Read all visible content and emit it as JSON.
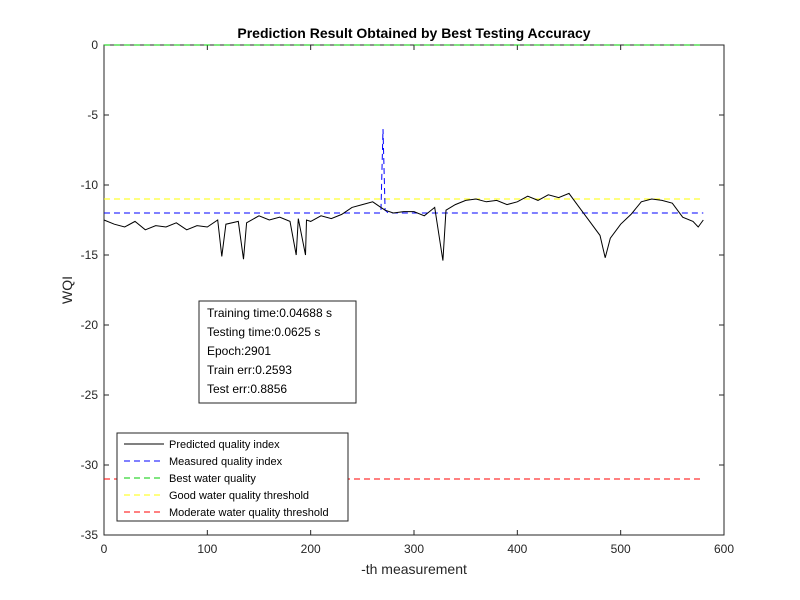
{
  "chart_data": {
    "type": "line",
    "title": "Prediction Result Obtained by Best Testing Accuracy",
    "xlabel": "-th measurement",
    "ylabel": "WQI",
    "xlim": [
      0,
      600
    ],
    "ylim": [
      -35,
      0
    ],
    "xticks": [
      "0",
      "100",
      "200",
      "300",
      "400",
      "500",
      "600"
    ],
    "yticks": [
      "0",
      "-5",
      "-10",
      "-15",
      "-20",
      "-25",
      "-30",
      "-35"
    ],
    "grid": false,
    "legend_position": "bottom-left",
    "series": [
      {
        "name": "Predicted quality index",
        "color": "#000000",
        "style": "solid",
        "x": [
          0,
          10,
          20,
          30,
          40,
          50,
          60,
          70,
          80,
          90,
          100,
          110,
          114,
          118,
          130,
          135,
          138,
          150,
          160,
          170,
          180,
          186,
          188,
          195,
          196,
          200,
          210,
          220,
          230,
          240,
          250,
          260,
          268,
          272,
          280,
          290,
          300,
          310,
          320,
          328,
          331,
          340,
          350,
          360,
          370,
          380,
          390,
          400,
          410,
          420,
          430,
          440,
          450,
          460,
          470,
          480,
          485,
          490,
          500,
          510,
          520,
          530,
          540,
          550,
          560,
          570,
          575,
          580
        ],
        "y": [
          -12.5,
          -12.8,
          -13.0,
          -12.6,
          -13.2,
          -12.9,
          -13.0,
          -12.7,
          -13.2,
          -12.9,
          -13.0,
          -12.5,
          -15.1,
          -12.8,
          -12.6,
          -15.3,
          -12.7,
          -12.2,
          -12.5,
          -12.3,
          -12.6,
          -15.0,
          -12.4,
          -15.0,
          -12.5,
          -12.6,
          -12.2,
          -12.4,
          -12.1,
          -11.6,
          -11.4,
          -11.2,
          -11.6,
          -11.8,
          -12.0,
          -11.9,
          -11.9,
          -12.2,
          -11.6,
          -15.4,
          -11.8,
          -11.4,
          -11.1,
          -11.0,
          -11.2,
          -11.1,
          -11.4,
          -11.2,
          -10.8,
          -11.1,
          -10.7,
          -10.9,
          -10.6,
          -11.6,
          -12.6,
          -13.6,
          -15.2,
          -13.8,
          -12.8,
          -12.1,
          -11.2,
          -11.0,
          -11.1,
          -11.3,
          -12.3,
          -12.6,
          -13.0,
          -12.5
        ]
      },
      {
        "name": "Measured quality index",
        "color": "#0000ff",
        "style": "dashed",
        "x": [
          0,
          200,
          268,
          270,
          272,
          275,
          300,
          400,
          500,
          580
        ],
        "y": [
          -12.0,
          -12.0,
          -12.0,
          -6.0,
          -11.8,
          -12.0,
          -12.0,
          -12.0,
          -12.0,
          -12.0
        ]
      },
      {
        "name": "Best water quality",
        "color": "#00cc00",
        "style": "dashed",
        "x": [
          0,
          580
        ],
        "y": [
          0,
          0
        ]
      },
      {
        "name": "Good water quality threshold",
        "color": "#ffff00",
        "style": "dashed",
        "x": [
          0,
          580
        ],
        "y": [
          -11,
          -11
        ]
      },
      {
        "name": "Moderate water quality threshold",
        "color": "#ff0000",
        "style": "dashed",
        "x": [
          0,
          580
        ],
        "y": [
          -31,
          -31
        ]
      }
    ],
    "annotations": [
      "Training time:0.04688 s",
      "Testing time:0.0625 s",
      "Epoch:2901",
      "Train err:0.2593",
      "Test err:0.8856"
    ]
  }
}
